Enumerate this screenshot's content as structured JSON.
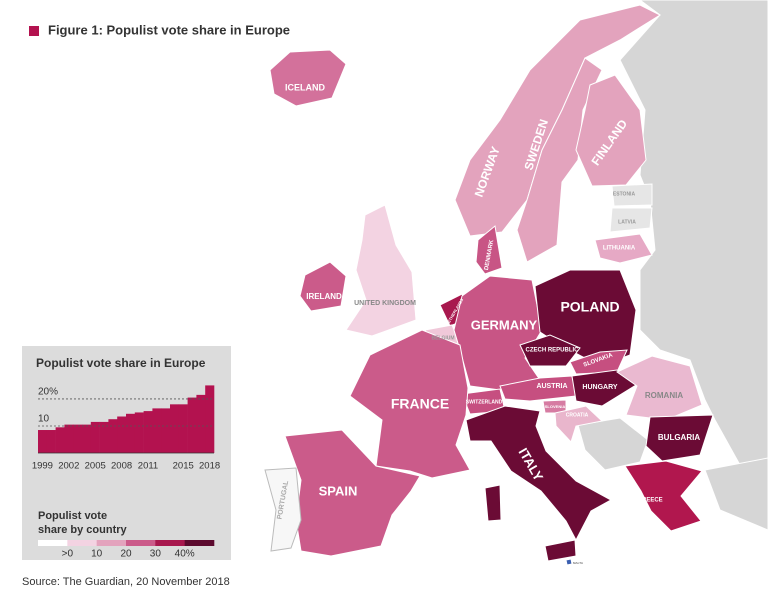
{
  "title": "Figure 1: Populist vote share in Europe",
  "source": "Source: The Guardian, 20 November 2018",
  "map": {
    "countries": [
      {
        "label": "ICELAND",
        "color": "#d3719b"
      },
      {
        "label": "NORWAY",
        "color": "#e3a3bd"
      },
      {
        "label": "SWEDEN",
        "color": "#e3a3bd"
      },
      {
        "label": "FINLAND",
        "color": "#e3a3bd"
      },
      {
        "label": "ESTONIA",
        "color": "#e6e6e6"
      },
      {
        "label": "LATVIA",
        "color": "#e6e6e6"
      },
      {
        "label": "LITHUANIA",
        "color": "#e6a9c5"
      },
      {
        "label": "DENMARK",
        "color": "#c85585"
      },
      {
        "label": "UNITED KINGDOM",
        "color": "#f3d3e2"
      },
      {
        "label": "IRELAND",
        "color": "#cb5b8a"
      },
      {
        "label": "NETHERLANDS",
        "color": "#a8184e"
      },
      {
        "label": "BELGIUM",
        "color": "#f0c8d9"
      },
      {
        "label": "GERMANY",
        "color": "#c85585"
      },
      {
        "label": "POLAND",
        "color": "#6b0b35"
      },
      {
        "label": "CZECH REPUBLIC",
        "color": "#6b0b35"
      },
      {
        "label": "SLOVAKIA",
        "color": "#c64f80"
      },
      {
        "label": "AUSTRIA",
        "color": "#c64f80"
      },
      {
        "label": "HUNGARY",
        "color": "#6b0b35"
      },
      {
        "label": "SWITZERLAND",
        "color": "#c64f80"
      },
      {
        "label": "SLOVENIA",
        "color": "#d67ba2"
      },
      {
        "label": "CROATIA",
        "color": "#e9b6cc"
      },
      {
        "label": "ROMANIA",
        "color": "#eab9d0"
      },
      {
        "label": "BULGARIA",
        "color": "#6b0b35"
      },
      {
        "label": "FRANCE",
        "color": "#cb5b8a"
      },
      {
        "label": "SPAIN",
        "color": "#cb5b8a"
      },
      {
        "label": "PORTUGAL",
        "color": "#f7f7f7"
      },
      {
        "label": "ITALY",
        "color": "#6b0b35"
      },
      {
        "label": "GREECE",
        "color": "#b1174e"
      },
      {
        "label": "MALTA",
        "color": "#3b5fb0"
      }
    ]
  },
  "inset_chart": {
    "type": "bar",
    "title": "Populist vote share in Europe",
    "categories": [
      "1999",
      null,
      null,
      "2002",
      null,
      null,
      "2005",
      null,
      null,
      "2008",
      null,
      null,
      "2011",
      null,
      null,
      null,
      "2015",
      null,
      null,
      "2018"
    ],
    "values": [
      8.5,
      8.5,
      9.5,
      10.5,
      10.5,
      10.5,
      11.5,
      11.5,
      12.5,
      13.5,
      14.5,
      15,
      15.5,
      16.5,
      16.5,
      18,
      18,
      20.5,
      21.5,
      25
    ],
    "color": "#b3124f",
    "ylim": [
      0,
      27
    ],
    "yticks": [
      10,
      {
        "value": 20,
        "label": "20%"
      }
    ],
    "grid": true
  },
  "legend": {
    "title_lines": [
      "Populist vote",
      "share by country"
    ],
    "colors": [
      "#ffffff",
      "#f3d3e2",
      "#e3a3bd",
      "#cb5b8a",
      "#a8184e",
      "#5c0a2e"
    ],
    "labels": [
      ">0",
      "10",
      "20",
      "30",
      "40%"
    ]
  }
}
